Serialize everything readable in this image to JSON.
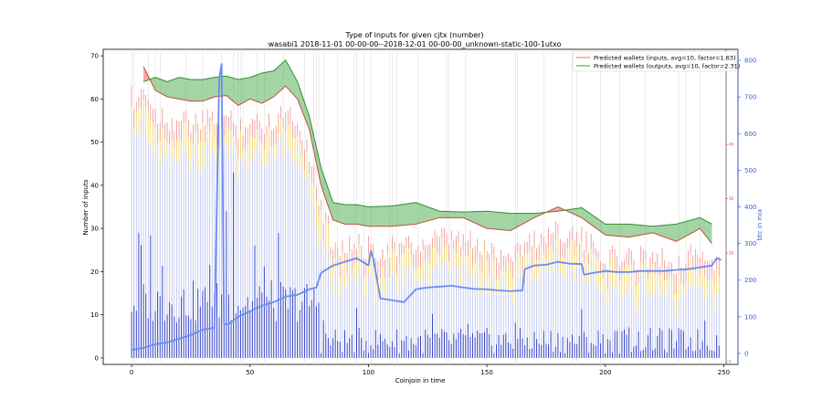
{
  "chart_data": {
    "type": "bar",
    "title": "Type of inputs for given cjtx (number)",
    "subtitle": "wasabi1 2018-11-01 00-00-00--2018-12-01 00-00-00_unknown-static-100-1utxo",
    "xlabel": "Coinjoin in time",
    "ylabel": "Number of inputs",
    "y2label": "btc in mix",
    "xlim": [
      -12,
      256
    ],
    "ylim": [
      -1.5,
      71.5
    ],
    "y2lim": [
      -30,
      830
    ],
    "y3lim": [
      -0.5,
      57.5
    ],
    "x_ticks": [
      0,
      50,
      100,
      150,
      200,
      250
    ],
    "y_ticks": [
      0,
      10,
      20,
      30,
      40,
      50,
      60,
      70
    ],
    "y2_ticks": [
      0,
      100,
      200,
      300,
      400,
      500,
      600,
      700,
      800
    ],
    "y3_ticks": [
      0,
      20,
      30,
      40
    ],
    "grid": "vertical lines",
    "legend_position": "top-right",
    "legend": [
      {
        "label": "Predicted wallets (inputs, avg=10, factor=1.63)",
        "color": "#e8735a"
      },
      {
        "label": "Predicted wallets (outputs, avg=10, factor=2.31)",
        "color": "#3a9a3a"
      }
    ],
    "colors": {
      "bar_dark": "#2f3fc8",
      "bar_light": "#b9c0ee",
      "bar_yellow": "#f2d35a",
      "bar_red": "#e99090",
      "btc_line": "#6b8cf0",
      "wallets_in": "#c0503a",
      "wallets_out": "#2f8f2f",
      "fill_green": "#4aaa4a",
      "fill_red": "#e85050",
      "right_axis": "#3d5bd9",
      "mid_axis": "#d9442e"
    },
    "series": [
      {
        "name": "Predicted wallets (inputs, avg=10, factor=1.63)",
        "x": [
          5,
          10,
          15,
          20,
          25,
          30,
          35,
          40,
          45,
          50,
          55,
          60,
          65,
          70,
          75,
          80,
          85,
          90,
          95,
          100,
          110,
          120,
          130,
          140,
          150,
          160,
          170,
          180,
          190,
          200,
          210,
          220,
          230,
          240,
          245
        ],
        "values": [
          67.5,
          62,
          60.5,
          60,
          59.5,
          59.5,
          60.5,
          60.8,
          58.5,
          60,
          59,
          60.5,
          63,
          60,
          53,
          40,
          32,
          31,
          31,
          30.5,
          30.5,
          31,
          32.5,
          32.5,
          30,
          29.5,
          32.5,
          35,
          32.5,
          28.5,
          28,
          29,
          27,
          30,
          26.5
        ]
      },
      {
        "name": "Predicted wallets (outputs, avg=10, factor=2.31)",
        "x": [
          5,
          10,
          15,
          20,
          25,
          30,
          35,
          40,
          45,
          50,
          55,
          60,
          65,
          70,
          75,
          80,
          85,
          90,
          95,
          100,
          110,
          120,
          130,
          140,
          150,
          160,
          170,
          180,
          190,
          200,
          210,
          220,
          230,
          240,
          245
        ],
        "values": [
          64,
          65,
          64,
          65,
          64.5,
          64.5,
          65,
          65.3,
          64.5,
          65,
          66,
          66.5,
          69,
          64,
          56,
          44,
          36,
          35.5,
          35.5,
          35,
          35.2,
          36,
          34,
          33.8,
          34,
          33.5,
          33.5,
          34,
          34.8,
          31,
          31,
          30.5,
          31,
          32.5,
          31
        ]
      },
      {
        "name": "btc in mix",
        "x": [
          0,
          5,
          10,
          15,
          20,
          25,
          30,
          35,
          37,
          38,
          39,
          41,
          45,
          50,
          55,
          60,
          65,
          70,
          75,
          78,
          80,
          85,
          90,
          95,
          100,
          101,
          102,
          105,
          110,
          115,
          120,
          125,
          130,
          135,
          140,
          145,
          150,
          155,
          160,
          165,
          166,
          170,
          175,
          180,
          185,
          190,
          191,
          195,
          200,
          205,
          210,
          215,
          220,
          225,
          230,
          235,
          240,
          245,
          247,
          249
        ],
        "values": [
          10,
          15,
          25,
          30,
          40,
          50,
          65,
          70,
          750,
          790,
          80,
          80,
          100,
          115,
          130,
          140,
          155,
          160,
          175,
          180,
          220,
          240,
          250,
          260,
          240,
          280,
          260,
          150,
          145,
          140,
          175,
          180,
          182,
          185,
          180,
          176,
          175,
          172,
          170,
          172,
          230,
          240,
          242,
          250,
          245,
          244,
          215,
          220,
          225,
          222,
          222,
          225,
          225,
          225,
          228,
          230,
          235,
          240,
          260,
          255
        ]
      }
    ],
    "bars_note": "Stacked input-type bars per coinjoin (0-248): dark blue base, light blue body, yellow and red tops following the wallet envelopes"
  }
}
